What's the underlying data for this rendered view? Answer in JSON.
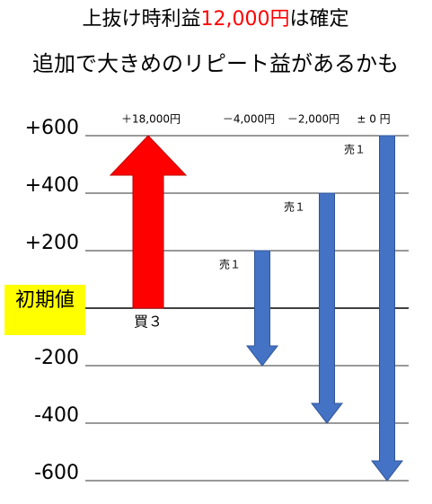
{
  "chart_data": {
    "type": "arrow",
    "title_parts": [
      "上抜け時利益",
      "12,000円",
      "は確定"
    ],
    "title_highlight_color": "#ff0000",
    "subtitle": "追加で大きめのリピート益があるかも",
    "ylim": [
      -600,
      600
    ],
    "yticks": [
      {
        "value": 600,
        "label": "+600"
      },
      {
        "value": 400,
        "label": "+400"
      },
      {
        "value": 200,
        "label": "+200"
      },
      {
        "value": 0,
        "label": "初期値"
      },
      -200,
      -400,
      -600
    ],
    "grid": true,
    "arrows": [
      {
        "from": 0,
        "to": 600,
        "color": "#ff0000",
        "top_label": "＋18,000円",
        "side_label": "買３"
      },
      {
        "from": 200,
        "to": -200,
        "color": "#4472c4",
        "top_label": "－4,000円",
        "side_label": "売１"
      },
      {
        "from": 400,
        "to": -400,
        "color": "#4472c4",
        "top_label": "－2,000円",
        "side_label": "売１"
      },
      {
        "from": 600,
        "to": -600,
        "color": "#4472c4",
        "top_label": "± 0 円",
        "side_label": "売１"
      }
    ]
  }
}
